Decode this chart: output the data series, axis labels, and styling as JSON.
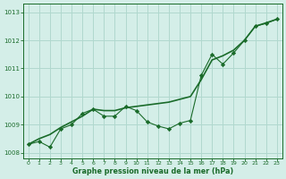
{
  "x": [
    0,
    1,
    2,
    3,
    4,
    5,
    6,
    7,
    8,
    9,
    10,
    11,
    12,
    13,
    14,
    15,
    16,
    17,
    18,
    19,
    20,
    21,
    22,
    23
  ],
  "erratic": [
    1008.3,
    1008.4,
    1008.2,
    1008.85,
    1009.0,
    1009.4,
    1009.55,
    1009.3,
    1009.3,
    1009.65,
    1009.5,
    1009.1,
    1008.95,
    1008.85,
    1009.05,
    1009.15,
    1010.75,
    1011.5,
    1011.15,
    1011.55,
    1012.0,
    1012.5,
    1012.6,
    1012.75
  ],
  "smooth": [
    1008.3,
    1008.5,
    1008.65,
    1008.9,
    1009.1,
    1009.3,
    1009.55,
    1009.5,
    1009.5,
    1009.6,
    1009.65,
    1009.7,
    1009.75,
    1009.8,
    1009.9,
    1010.0,
    1010.6,
    1011.3,
    1011.45,
    1011.65,
    1012.0,
    1012.5,
    1012.62,
    1012.75
  ],
  "background_color": "#d4eee8",
  "grid_color": "#b0d8ce",
  "line_color": "#1a6b2a",
  "xlabel": "Graphe pression niveau de la mer (hPa)",
  "ylim": [
    1007.8,
    1013.3
  ],
  "xlim": [
    -0.5,
    23.5
  ],
  "yticks": [
    1008,
    1009,
    1010,
    1011,
    1012,
    1013
  ],
  "xticks": [
    0,
    1,
    2,
    3,
    4,
    5,
    6,
    7,
    8,
    9,
    10,
    11,
    12,
    13,
    14,
    15,
    16,
    17,
    18,
    19,
    20,
    21,
    22,
    23
  ]
}
